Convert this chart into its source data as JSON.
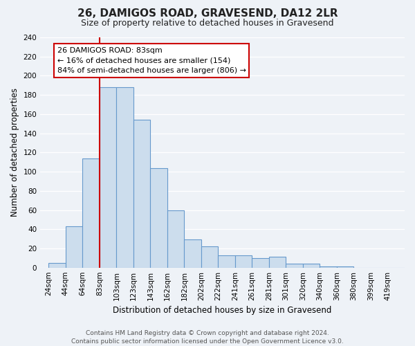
{
  "title": "26, DAMIGOS ROAD, GRAVESEND, DA12 2LR",
  "subtitle": "Size of property relative to detached houses in Gravesend",
  "xlabel": "Distribution of detached houses by size in Gravesend",
  "ylabel": "Number of detached properties",
  "bin_labels": [
    "24sqm",
    "44sqm",
    "64sqm",
    "83sqm",
    "103sqm",
    "123sqm",
    "143sqm",
    "162sqm",
    "182sqm",
    "202sqm",
    "222sqm",
    "241sqm",
    "261sqm",
    "281sqm",
    "301sqm",
    "320sqm",
    "340sqm",
    "360sqm",
    "380sqm",
    "399sqm",
    "419sqm"
  ],
  "bar_heights": [
    5,
    43,
    114,
    188,
    188,
    154,
    104,
    60,
    29,
    22,
    13,
    13,
    10,
    11,
    4,
    4,
    1,
    1,
    0,
    0,
    0
  ],
  "bar_color": "#ccdded",
  "bar_edge_color": "#6699cc",
  "vline_index": 3,
  "vline_color": "#cc0000",
  "annotation_title": "26 DAMIGOS ROAD: 83sqm",
  "annotation_line1": "← 16% of detached houses are smaller (154)",
  "annotation_line2": "84% of semi-detached houses are larger (806) →",
  "annotation_box_facecolor": "#ffffff",
  "annotation_box_edgecolor": "#cc0000",
  "ylim": [
    0,
    240
  ],
  "yticks": [
    0,
    20,
    40,
    60,
    80,
    100,
    120,
    140,
    160,
    180,
    200,
    220,
    240
  ],
  "footer_line1": "Contains HM Land Registry data © Crown copyright and database right 2024.",
  "footer_line2": "Contains public sector information licensed under the Open Government Licence v3.0.",
  "bg_color": "#eef2f7",
  "grid_color": "#ffffff",
  "title_fontsize": 11,
  "subtitle_fontsize": 9,
  "tick_fontsize": 7.5,
  "ylabel_fontsize": 8.5,
  "xlabel_fontsize": 8.5,
  "footer_fontsize": 6.5,
  "annotation_fontsize": 8
}
